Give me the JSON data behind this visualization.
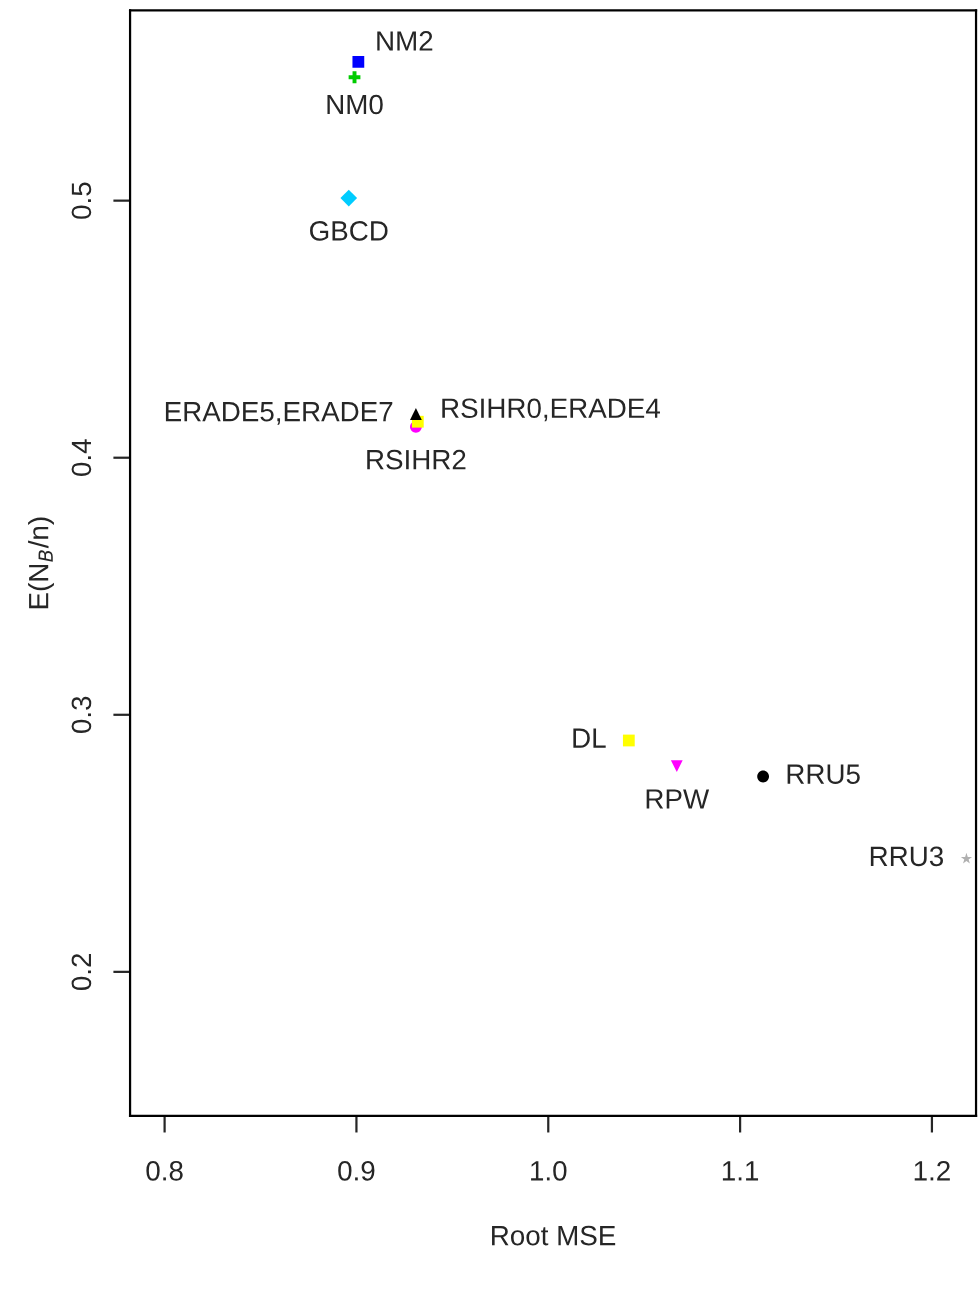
{
  "chart_data": {
    "type": "scatter",
    "xlabel": "Root MSE",
    "ylabel": "E(N$_{B}$/n)",
    "xlim": [
      0.782,
      1.223
    ],
    "ylim": [
      0.144,
      0.574
    ],
    "xticks": [
      0.8,
      0.9,
      {
        "value": 1,
        "label": "1.0"
      },
      1.1,
      1.2
    ],
    "yticks": [
      0.2,
      0.3,
      0.4,
      0.5
    ],
    "grid": false,
    "legend": false,
    "series": [
      {
        "name": "NM2",
        "color": "#0000ff",
        "marker": "square",
        "x": [
          0.901
        ],
        "values": [
          0.554
        ]
      },
      {
        "name": "NM0",
        "color": "#00cc00",
        "marker": "cross",
        "x": [
          0.899
        ],
        "values": [
          0.548
        ]
      },
      {
        "name": "GBCD",
        "color": "#00ccff",
        "marker": "diamond",
        "x": [
          0.896
        ],
        "values": [
          0.501
        ]
      },
      {
        "name": "ERADE5,ERADE7",
        "color": "#000000",
        "marker": "triangle",
        "x": [
          0.931
        ],
        "values": [
          0.417
        ]
      },
      {
        "name": "RSIHR0,ERADE4",
        "color": "#ffff00",
        "marker": "square",
        "x": [
          0.932
        ],
        "values": [
          0.414
        ]
      },
      {
        "name": "RSIHR2",
        "color": "#ff00ff",
        "marker": "circle",
        "x": [
          0.931
        ],
        "values": [
          0.412
        ]
      },
      {
        "name": "DL",
        "color": "#ffff00",
        "marker": "square",
        "x": [
          1.042
        ],
        "values": [
          0.29
        ]
      },
      {
        "name": "RPW",
        "color": "#ff00ff",
        "marker": "triangle_down",
        "x": [
          1.067
        ],
        "values": [
          0.28
        ]
      },
      {
        "name": "RRU5",
        "color": "#000000",
        "marker": "circle",
        "x": [
          1.112
        ],
        "values": [
          0.276
        ]
      },
      {
        "name": "RRU3",
        "color": "#b0b0b0",
        "marker": "star",
        "x": [
          1.218
        ],
        "values": [
          0.244
        ]
      }
    ]
  }
}
